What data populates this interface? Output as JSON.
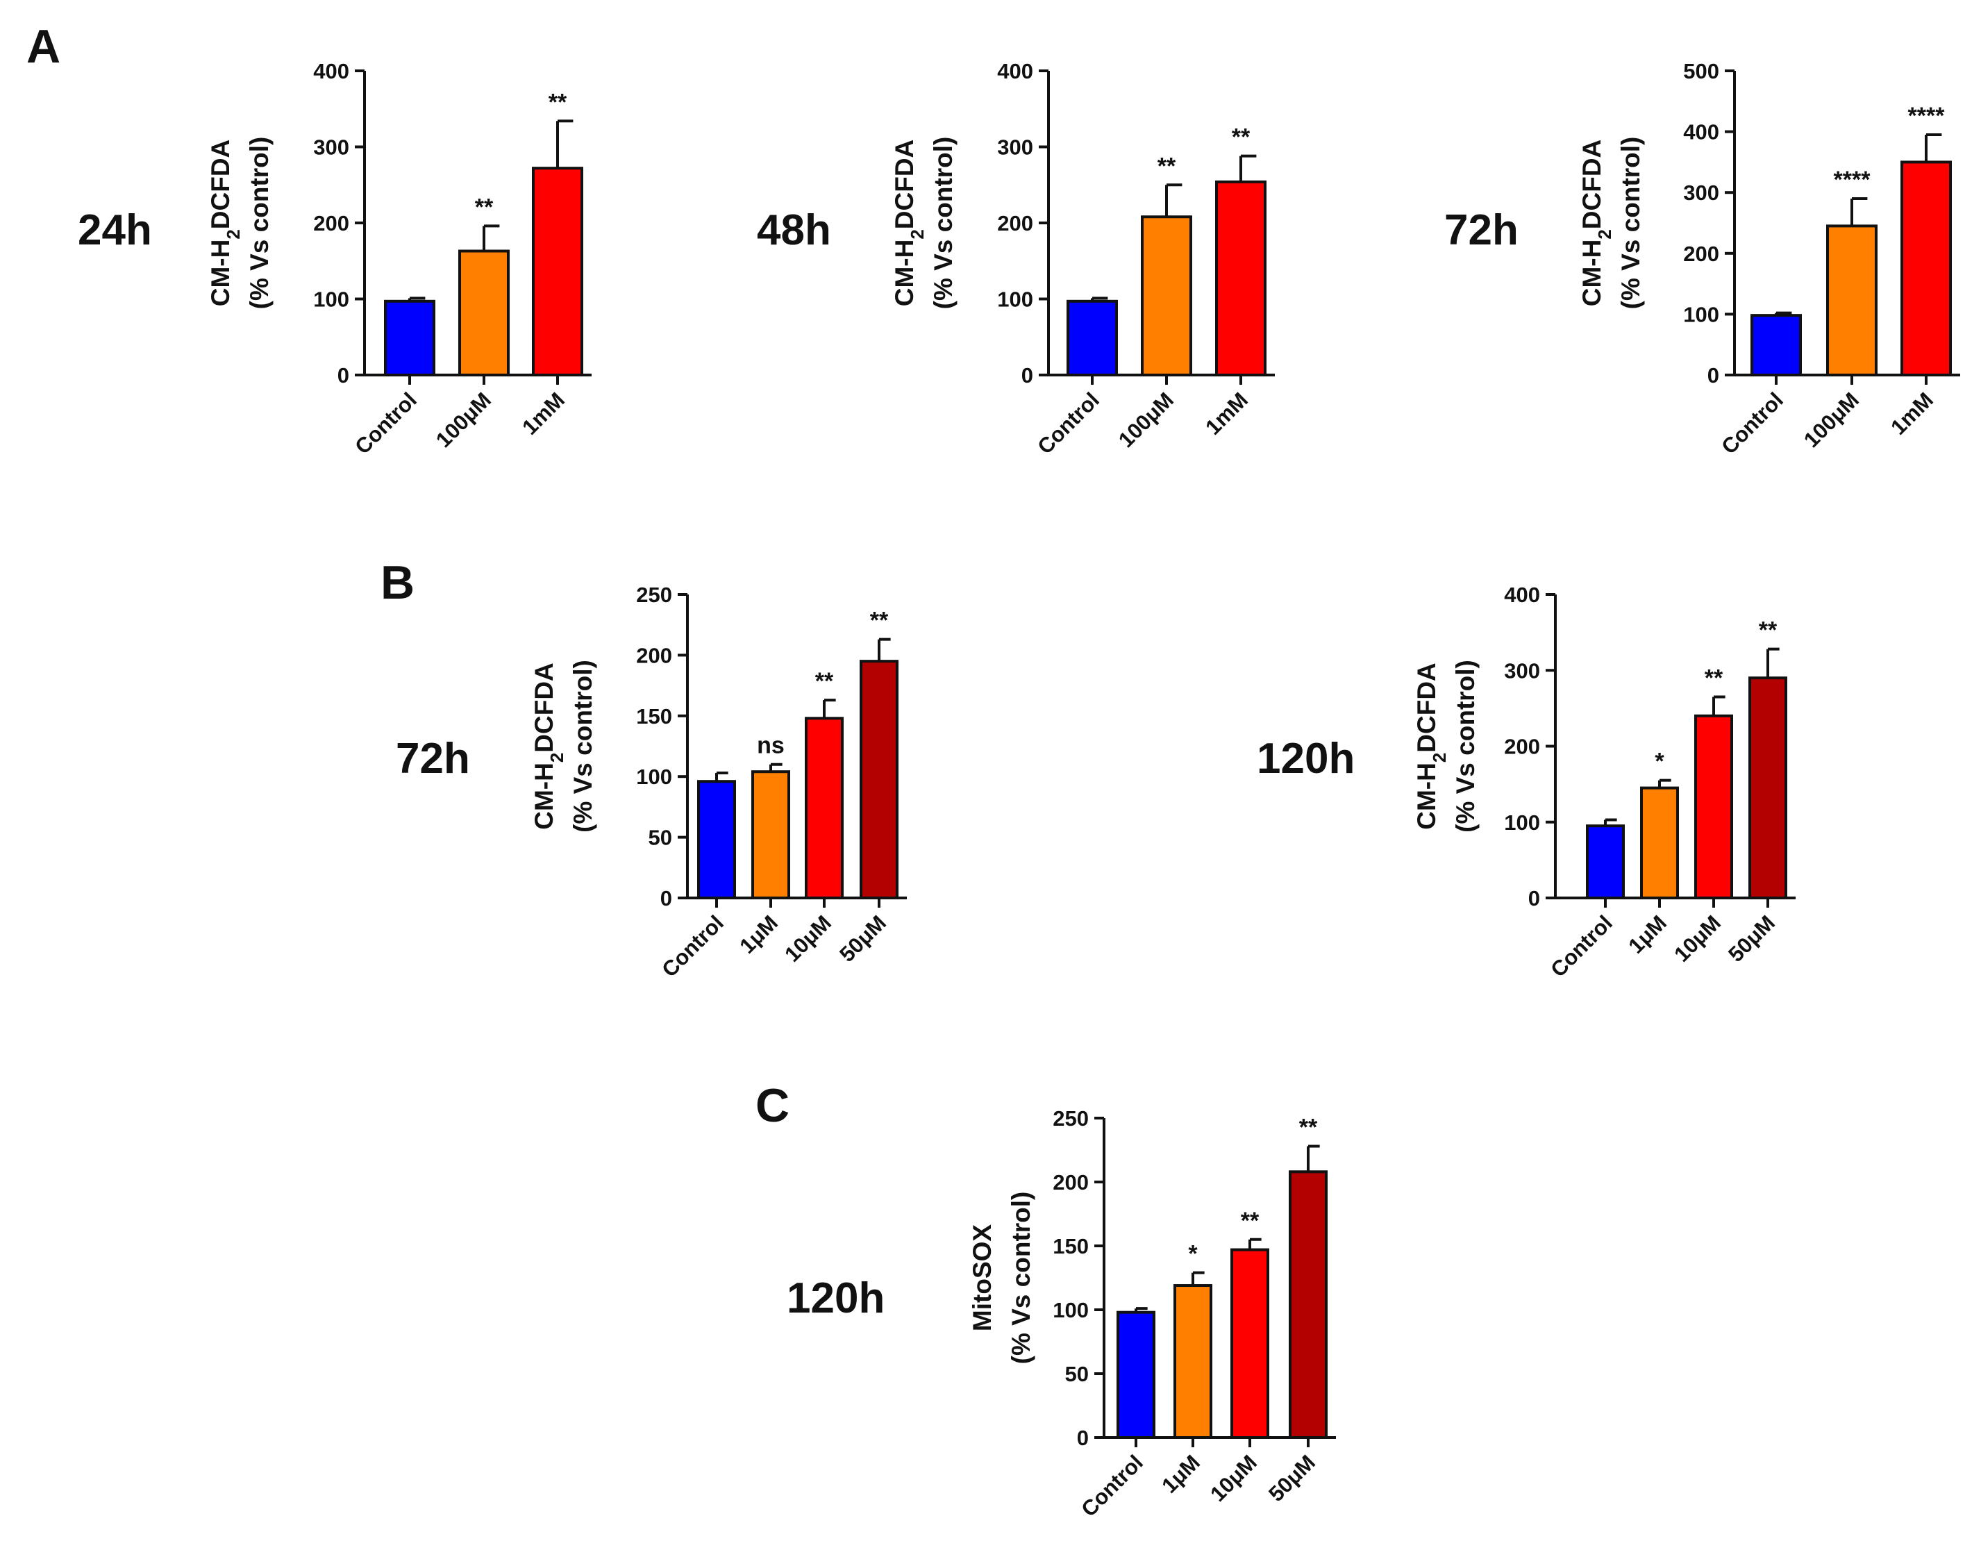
{
  "panels": [
    {
      "letter": "A"
    },
    {
      "letter": "B"
    },
    {
      "letter": "C"
    }
  ],
  "chart_data": [
    {
      "type": "bar",
      "panel": "A",
      "time_label": "24h",
      "ylabel_line1": "CM-H2DCFDA",
      "ylabel_line2": "(% Vs control)",
      "categories": [
        "Control",
        "100μM",
        "1mM"
      ],
      "values": [
        97,
        163,
        272
      ],
      "errors": [
        4,
        33,
        62
      ],
      "significance": [
        "",
        "**",
        "**"
      ],
      "colors": [
        "#0000ff",
        "#ff8000",
        "#ff0000"
      ],
      "ylim": [
        0,
        400
      ],
      "yticks": [
        0,
        100,
        200,
        300,
        400
      ]
    },
    {
      "type": "bar",
      "panel": "A",
      "time_label": "48h",
      "ylabel_line1": "CM-H2DCFDA",
      "ylabel_line2": "(% Vs control)",
      "categories": [
        "Control",
        "100μM",
        "1mM"
      ],
      "values": [
        97,
        208,
        254
      ],
      "errors": [
        4,
        42,
        34
      ],
      "significance": [
        "",
        "**",
        "**"
      ],
      "colors": [
        "#0000ff",
        "#ff8000",
        "#ff0000"
      ],
      "ylim": [
        0,
        400
      ],
      "yticks": [
        0,
        100,
        200,
        300,
        400
      ]
    },
    {
      "type": "bar",
      "panel": "A",
      "time_label": "72h",
      "ylabel_line1": "CM-H2DCFDA",
      "ylabel_line2": "(% Vs control)",
      "categories": [
        "Control",
        "100μM",
        "1mM"
      ],
      "values": [
        98,
        245,
        350
      ],
      "errors": [
        4,
        45,
        45
      ],
      "significance": [
        "",
        "****",
        "****"
      ],
      "colors": [
        "#0000ff",
        "#ff8000",
        "#ff0000"
      ],
      "ylim": [
        0,
        500
      ],
      "yticks": [
        0,
        100,
        200,
        300,
        400,
        500
      ]
    },
    {
      "type": "bar",
      "panel": "B",
      "time_label": "72h",
      "ylabel_line1": "CM-H2DCFDA",
      "ylabel_line2": "(% Vs control)",
      "categories": [
        "Control",
        "1μM",
        "10μM",
        "50μM"
      ],
      "values": [
        96,
        104,
        148,
        195
      ],
      "errors": [
        7,
        6,
        15,
        18
      ],
      "significance": [
        "",
        "ns",
        "**",
        "**"
      ],
      "colors": [
        "#0000ff",
        "#ff8000",
        "#ff0000",
        "#b30000"
      ],
      "ylim": [
        0,
        250
      ],
      "yticks": [
        0,
        50,
        100,
        150,
        200,
        250
      ]
    },
    {
      "type": "bar",
      "panel": "B",
      "time_label": "120h",
      "ylabel_line1": "CM-H2DCFDA",
      "ylabel_line2": "(% Vs control)",
      "categories": [
        "Control",
        "1μM",
        "10μM",
        "50μM"
      ],
      "values": [
        95,
        145,
        240,
        290
      ],
      "errors": [
        8,
        10,
        25,
        38
      ],
      "significance": [
        "",
        "*",
        "**",
        "**"
      ],
      "colors": [
        "#0000ff",
        "#ff8000",
        "#ff0000",
        "#b30000"
      ],
      "ylim": [
        0,
        400
      ],
      "yticks": [
        0,
        100,
        200,
        300,
        400
      ]
    },
    {
      "type": "bar",
      "panel": "C",
      "time_label": "120h",
      "ylabel_line1": "MitoSOX",
      "ylabel_line2": "(% Vs control)",
      "categories": [
        "Control",
        "1μM",
        "10μM",
        "50μM"
      ],
      "values": [
        98,
        119,
        147,
        208
      ],
      "errors": [
        3,
        10,
        8,
        20
      ],
      "significance": [
        "",
        "*",
        "**",
        "**"
      ],
      "colors": [
        "#0000ff",
        "#ff8000",
        "#ff0000",
        "#b30000"
      ],
      "ylim": [
        0,
        250
      ],
      "yticks": [
        0,
        50,
        100,
        150,
        200,
        250
      ]
    }
  ]
}
